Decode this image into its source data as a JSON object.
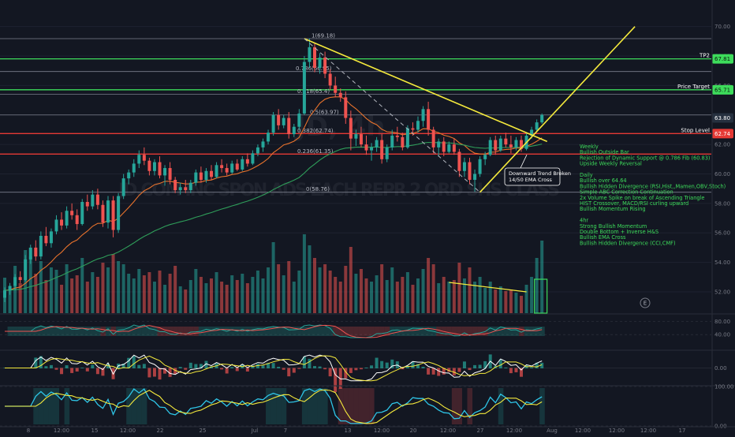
{
  "chart_data": {
    "type": "candlestick",
    "title": "",
    "watermark": "JD, 4h JD.COM INC SPON ADS EACH REPR 2 ORD SHS CLASS",
    "ylim": [
      50.5,
      71
    ],
    "y_ticks": [
      "70.00",
      "68.00",
      "66.00",
      "64.00",
      "62.00",
      "60.00",
      "58.00",
      "56.00",
      "54.00",
      "52.00"
    ],
    "x_ticks": [
      "8",
      "12:00",
      "15",
      "12:00",
      "22",
      "25",
      "Jul",
      "7",
      "13",
      "12:00",
      "20",
      "12:00",
      "27",
      "12:00",
      "Aug",
      "12:00",
      "12:00",
      "12:00",
      "17"
    ],
    "colors": {
      "up": "#26a69a",
      "down": "#ef5350",
      "ema_fast": "#e8722c",
      "ema_slow": "#2f9e5a",
      "trendline": "#f5ea3c",
      "level_green": "#3ddc5b",
      "level_red": "#e53935",
      "level_gray": "#7b7f8c",
      "price_badge": "#26303f",
      "notes": "#3ddc5b"
    },
    "price_levels": [
      {
        "price": 69.18,
        "label": "",
        "color": "gray"
      },
      {
        "price": 67.81,
        "label": "TP2",
        "color": "green"
      },
      {
        "price": 66.95,
        "label": "",
        "color": "gray"
      },
      {
        "price": 65.71,
        "label": "Price Target",
        "color": "green"
      },
      {
        "price": 65.4,
        "label": "",
        "color": "gray"
      },
      {
        "price": 64.0,
        "label": "",
        "color": "gray"
      },
      {
        "price": 62.74,
        "label": "Stop Level",
        "color": "red"
      },
      {
        "price": 61.35,
        "label": "",
        "color": "red"
      },
      {
        "price": 58.76,
        "label": "",
        "color": "gray"
      }
    ],
    "axis_badges": [
      {
        "price": 67.81,
        "text": "67.81",
        "color": "green"
      },
      {
        "price": 65.71,
        "text": "65.71",
        "color": "green"
      },
      {
        "price": 63.8,
        "text": "63.80",
        "color": "dark"
      },
      {
        "price": 62.74,
        "text": "62.74",
        "color": "red"
      }
    ],
    "fib_labels": [
      {
        "price": 69.18,
        "text": "1(69.18)"
      },
      {
        "price": 66.95,
        "text": "0.786(66.95)"
      },
      {
        "price": 65.4,
        "text": "0.618(65.4)"
      },
      {
        "price": 64.0,
        "text": "0.5(63.97)"
      },
      {
        "price": 62.74,
        "text": "0.382(62.74)"
      },
      {
        "price": 61.35,
        "text": "0.236(61.35)"
      },
      {
        "price": 58.76,
        "text": "0(58.76)"
      }
    ],
    "candles": [
      [
        51.6,
        52.3,
        51.3,
        52.1
      ],
      [
        52.1,
        52.6,
        51.8,
        52.4
      ],
      [
        52.4,
        53.2,
        52.1,
        53.0
      ],
      [
        53.0,
        53.4,
        52.6,
        52.8
      ],
      [
        52.8,
        54.5,
        52.7,
        54.2
      ],
      [
        54.2,
        55.2,
        53.9,
        55.0
      ],
      [
        55.0,
        55.5,
        54.1,
        54.4
      ],
      [
        54.4,
        56.1,
        54.2,
        55.8
      ],
      [
        55.8,
        56.4,
        55.1,
        55.3
      ],
      [
        55.3,
        56.3,
        55.0,
        56.1
      ],
      [
        56.1,
        57.2,
        55.9,
        56.9
      ],
      [
        56.9,
        57.4,
        56.2,
        56.5
      ],
      [
        56.5,
        57.8,
        56.3,
        57.5
      ],
      [
        57.5,
        58.0,
        56.9,
        57.2
      ],
      [
        57.2,
        57.6,
        56.2,
        56.6
      ],
      [
        56.6,
        58.3,
        56.5,
        58.1
      ],
      [
        58.1,
        58.6,
        57.5,
        57.8
      ],
      [
        57.8,
        58.9,
        57.6,
        58.6
      ],
      [
        58.6,
        59.0,
        57.6,
        57.9
      ],
      [
        57.9,
        58.2,
        56.4,
        56.7
      ],
      [
        56.7,
        58.5,
        56.3,
        58.2
      ],
      [
        58.2,
        58.5,
        55.7,
        56.2
      ],
      [
        56.2,
        58.7,
        56.0,
        58.5
      ],
      [
        58.5,
        60.0,
        58.3,
        59.7
      ],
      [
        59.7,
        60.3,
        59.3,
        60.1
      ],
      [
        60.1,
        61.0,
        59.8,
        60.7
      ],
      [
        60.7,
        61.6,
        60.4,
        61.3
      ],
      [
        61.3,
        61.8,
        60.6,
        60.9
      ],
      [
        60.9,
        61.1,
        59.9,
        60.2
      ],
      [
        60.2,
        61.0,
        59.9,
        60.8
      ],
      [
        60.8,
        61.2,
        59.7,
        59.9
      ],
      [
        59.9,
        60.6,
        59.2,
        60.4
      ],
      [
        60.4,
        60.8,
        59.3,
        59.6
      ],
      [
        59.6,
        59.8,
        58.7,
        58.9
      ],
      [
        58.9,
        59.4,
        58.6,
        59.1
      ],
      [
        59.1,
        59.6,
        58.7,
        58.9
      ],
      [
        58.9,
        59.6,
        58.7,
        59.4
      ],
      [
        59.4,
        60.3,
        59.2,
        60.1
      ],
      [
        60.1,
        60.5,
        59.4,
        59.6
      ],
      [
        59.6,
        60.4,
        59.4,
        60.2
      ],
      [
        60.2,
        60.6,
        59.6,
        59.8
      ],
      [
        59.8,
        60.8,
        59.7,
        60.6
      ],
      [
        60.6,
        61.0,
        60.1,
        60.4
      ],
      [
        60.4,
        60.7,
        59.9,
        60.1
      ],
      [
        60.1,
        60.9,
        60.0,
        60.7
      ],
      [
        60.7,
        61.0,
        60.2,
        60.3
      ],
      [
        60.3,
        61.2,
        60.2,
        61.0
      ],
      [
        61.0,
        61.4,
        60.5,
        60.7
      ],
      [
        60.7,
        61.6,
        60.6,
        61.4
      ],
      [
        61.4,
        62.0,
        61.2,
        61.8
      ],
      [
        61.8,
        62.4,
        61.5,
        62.2
      ],
      [
        62.2,
        63.0,
        62.0,
        62.8
      ],
      [
        62.8,
        64.2,
        62.6,
        64.0
      ],
      [
        64.0,
        64.4,
        63.0,
        63.3
      ],
      [
        63.3,
        64.0,
        63.1,
        63.8
      ],
      [
        63.8,
        64.2,
        62.4,
        62.7
      ],
      [
        62.7,
        63.4,
        62.5,
        63.2
      ],
      [
        63.2,
        64.4,
        63.0,
        64.1
      ],
      [
        64.1,
        68.0,
        64.0,
        67.6
      ],
      [
        67.6,
        69.2,
        67.2,
        68.6
      ],
      [
        68.6,
        68.9,
        66.9,
        67.2
      ],
      [
        67.2,
        68.2,
        66.8,
        67.9
      ],
      [
        67.9,
        68.3,
        66.5,
        66.8
      ],
      [
        66.8,
        67.1,
        65.7,
        66.0
      ],
      [
        66.0,
        66.6,
        65.2,
        65.5
      ],
      [
        65.5,
        65.8,
        64.9,
        65.2
      ],
      [
        65.2,
        65.6,
        63.4,
        63.8
      ],
      [
        63.8,
        64.3,
        61.6,
        62.4
      ],
      [
        62.4,
        63.0,
        61.9,
        62.7
      ],
      [
        62.7,
        63.2,
        61.8,
        62.0
      ],
      [
        62.0,
        62.6,
        61.3,
        61.6
      ],
      [
        61.6,
        62.1,
        60.9,
        61.8
      ],
      [
        61.8,
        62.5,
        61.5,
        62.3
      ],
      [
        62.3,
        62.7,
        60.7,
        61.0
      ],
      [
        61.0,
        62.0,
        60.8,
        61.8
      ],
      [
        61.8,
        63.0,
        61.6,
        62.6
      ],
      [
        62.6,
        63.2,
        62.2,
        62.5
      ],
      [
        62.5,
        62.8,
        61.6,
        61.8
      ],
      [
        61.8,
        63.3,
        61.7,
        63.1
      ],
      [
        63.1,
        63.5,
        62.6,
        63.0
      ],
      [
        63.0,
        63.9,
        62.8,
        63.6
      ],
      [
        63.6,
        64.6,
        63.2,
        64.4
      ],
      [
        64.4,
        64.9,
        62.6,
        63.0
      ],
      [
        63.0,
        63.2,
        61.4,
        61.8
      ],
      [
        61.8,
        62.4,
        61.2,
        62.2
      ],
      [
        62.2,
        62.5,
        61.2,
        61.5
      ],
      [
        61.5,
        62.2,
        61.4,
        62.0
      ],
      [
        62.0,
        62.4,
        61.3,
        61.5
      ],
      [
        61.5,
        61.7,
        59.8,
        60.2
      ],
      [
        60.2,
        61.1,
        59.8,
        60.8
      ],
      [
        60.8,
        61.1,
        59.3,
        59.6
      ],
      [
        59.6,
        60.3,
        58.8,
        60.0
      ],
      [
        60.0,
        61.2,
        59.8,
        61.0
      ],
      [
        61.0,
        61.5,
        60.6,
        61.3
      ],
      [
        61.3,
        62.5,
        61.2,
        62.3
      ],
      [
        62.3,
        62.6,
        61.3,
        61.6
      ],
      [
        61.6,
        62.6,
        61.5,
        62.4
      ],
      [
        62.4,
        62.8,
        61.8,
        62.0
      ],
      [
        62.0,
        62.6,
        61.4,
        61.8
      ],
      [
        61.8,
        62.5,
        61.6,
        62.3
      ],
      [
        62.3,
        62.6,
        61.5,
        61.7
      ],
      [
        61.7,
        62.8,
        61.6,
        62.6
      ],
      [
        62.6,
        63.2,
        62.4,
        63.0
      ],
      [
        63.0,
        63.7,
        62.8,
        63.5
      ],
      [
        63.5,
        64.1,
        63.4,
        64.0
      ]
    ],
    "volume": [
      0.45,
      0.3,
      0.6,
      0.38,
      0.8,
      0.72,
      0.5,
      0.66,
      0.42,
      0.58,
      0.55,
      0.36,
      0.62,
      0.44,
      0.48,
      0.7,
      0.4,
      0.52,
      0.46,
      0.64,
      0.58,
      0.75,
      0.66,
      0.62,
      0.5,
      0.44,
      0.56,
      0.48,
      0.52,
      0.4,
      0.54,
      0.36,
      0.5,
      0.6,
      0.34,
      0.3,
      0.42,
      0.56,
      0.46,
      0.38,
      0.44,
      0.52,
      0.4,
      0.36,
      0.48,
      0.42,
      0.5,
      0.38,
      0.46,
      0.54,
      0.44,
      0.58,
      0.9,
      0.62,
      0.48,
      0.66,
      0.4,
      0.54,
      1.0,
      0.86,
      0.7,
      0.58,
      0.62,
      0.54,
      0.46,
      0.4,
      0.6,
      0.84,
      0.5,
      0.56,
      0.44,
      0.4,
      0.48,
      0.62,
      0.42,
      0.58,
      0.4,
      0.46,
      0.52,
      0.36,
      0.44,
      0.56,
      0.7,
      0.62,
      0.38,
      0.46,
      0.4,
      0.42,
      0.64,
      0.44,
      0.58,
      0.4,
      0.46,
      0.32,
      0.4,
      0.3,
      0.34,
      0.28,
      0.3,
      0.26,
      0.22,
      0.36,
      0.46,
      0.7,
      0.92
    ],
    "trendlines": [
      {
        "from": [
          58,
          69.18
        ],
        "to": [
          105,
          62.2
        ],
        "style": "solid"
      },
      {
        "from": [
          58,
          69.18
        ],
        "to": [
          92,
          58.76
        ],
        "style": "dashed"
      },
      {
        "from": [
          92,
          58.76
        ],
        "to": [
          122,
          70.0
        ],
        "style": "solid"
      }
    ],
    "volume_trendline": {
      "from": [
        86,
        0.36
      ],
      "to": [
        101,
        0.24
      ]
    },
    "callout": {
      "lines": [
        "Downward Trend Broken",
        "14/50 EMA Cross"
      ]
    },
    "earnings_marker": "E",
    "notes": [
      "Weekly",
      "Bullish Outside Bar",
      "Rejection of Dynamic Support @ 0.786 Fib (60.83)",
      "Upside Weekly Reversal",
      "",
      "Daily",
      "Bullish over 64.64",
      "Bullish Hidden Divergence (RSI,Hist,,Mamen,OBV,Stoch)",
      "Simple ABC Correction Continuation",
      "2x Volume Spike on break of Ascending Triangle",
      "HIST Crossover, MACD/RSI curling upward",
      "Bullish Momentum Rising",
      "",
      "4hr",
      "Strong Bullish Momentum",
      "Double Bottom + Inverse H&S",
      "Bullish EMA Cross",
      "Bullish Hidden Divergence (CCI,CMF)"
    ],
    "indicator_panels": [
      {
        "name": "",
        "ticks": [
          "80.00",
          "40.00"
        ],
        "range": [
          0,
          100
        ]
      },
      {
        "name": "",
        "ticks": [
          "0.00"
        ],
        "range": [
          -1,
          1
        ]
      },
      {
        "name": "",
        "ticks": [
          "100.00",
          "0.00"
        ],
        "range": [
          0,
          100
        ]
      }
    ]
  }
}
